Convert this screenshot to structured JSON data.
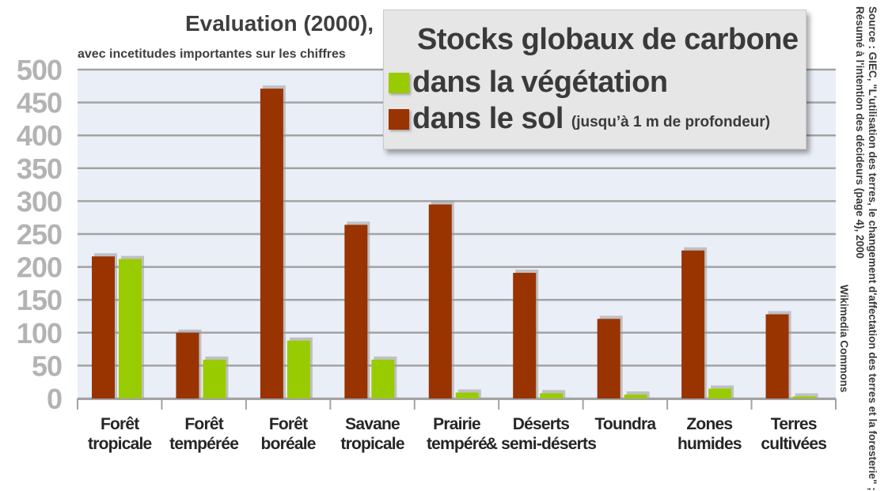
{
  "colors": {
    "sol": "#993300",
    "vegetation": "#99cc00",
    "plot_bg": "#eaeef7",
    "grid": "#a3a3a3",
    "tick_text": "#b3b3b3"
  },
  "header": {
    "title": "Evaluation (2000),",
    "subtitle": "avec incetitudes importantes sur les chiffres"
  },
  "legend": {
    "title": "Stocks globaux de carbone",
    "vegetation_label": "dans  la végétation",
    "sol_label": "dans le sol",
    "sol_note": "(jusqu’à 1 m de profondeur)"
  },
  "source": {
    "line1": "Source : GIEC, \"L'utilisation des terres, le changement d'affectation des terres et la foresterie\" ;",
    "line2": "Résumé à l'intention des décideurs (page 4), 2000",
    "credit": "Wikimedia Commons"
  },
  "chart_data": {
    "type": "bar",
    "categories": [
      [
        "Forêt",
        "tropicale"
      ],
      [
        "Forêt",
        "tempérée"
      ],
      [
        "Forêt",
        "boréale"
      ],
      [
        "Savane",
        "tropicale"
      ],
      [
        "Prairie",
        "tempéré"
      ],
      [
        "Déserts",
        "& semi-déserts"
      ],
      [
        "Toundra"
      ],
      [
        "Zones",
        "humides"
      ],
      [
        "Terres",
        "cultivées"
      ]
    ],
    "series": [
      {
        "name": "dans le sol",
        "color": "#993300",
        "values": [
          216,
          100,
          471,
          264,
          295,
          191,
          121,
          225,
          128
        ]
      },
      {
        "name": "dans  la végétation",
        "color": "#99cc00",
        "values": [
          212,
          59,
          88,
          59,
          9,
          8,
          6,
          15,
          3
        ]
      }
    ],
    "ylim": [
      0,
      500
    ],
    "yticks": [
      "0",
      "50",
      "100",
      "150",
      "200",
      "250",
      "300",
      "350",
      "400",
      "450",
      "500"
    ],
    "grid": true,
    "legend_position": "top-right"
  }
}
